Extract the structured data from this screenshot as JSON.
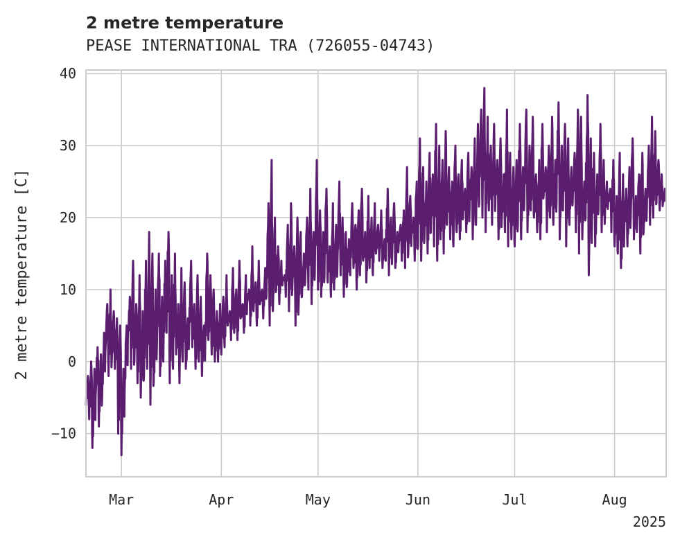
{
  "chart_data": {
    "type": "line",
    "title": "2 metre temperature",
    "subtitle": "PEASE INTERNATIONAL TRA (726055-04743)",
    "ylabel": "2 metre temperature [C]",
    "xlabel": "",
    "x_range": [
      "2025-02-18",
      "2025-08-17"
    ],
    "ylim": [
      -16,
      40.5
    ],
    "yticks": [
      -10,
      0,
      10,
      20,
      30,
      40
    ],
    "xticks": [
      {
        "date": "2025-03-01",
        "label": "Mar"
      },
      {
        "date": "2025-04-01",
        "label": "Apr"
      },
      {
        "date": "2025-05-01",
        "label": "May"
      },
      {
        "date": "2025-06-01",
        "label": "Jun"
      },
      {
        "date": "2025-07-01",
        "label": "Jul"
      },
      {
        "date": "2025-08-01",
        "label": "Aug"
      }
    ],
    "year_label": "2025",
    "grid": true,
    "line_color": "#5b1e6f",
    "series": [
      {
        "x": [
          "2025-02-18",
          "2025-02-19",
          "2025-02-20",
          "2025-02-21",
          "2025-02-22",
          "2025-02-23",
          "2025-02-24",
          "2025-02-25",
          "2025-02-26",
          "2025-02-27",
          "2025-02-28",
          "2025-03-01",
          "2025-03-02",
          "2025-03-03",
          "2025-03-04",
          "2025-03-05",
          "2025-03-06",
          "2025-03-07",
          "2025-03-08",
          "2025-03-09",
          "2025-03-10",
          "2025-03-11",
          "2025-03-12",
          "2025-03-13",
          "2025-03-14",
          "2025-03-15",
          "2025-03-16",
          "2025-03-17",
          "2025-03-18",
          "2025-03-19",
          "2025-03-20",
          "2025-03-21",
          "2025-03-22",
          "2025-03-23",
          "2025-03-24",
          "2025-03-25",
          "2025-03-26",
          "2025-03-27",
          "2025-03-28",
          "2025-03-29",
          "2025-03-30",
          "2025-03-31",
          "2025-04-01",
          "2025-04-02",
          "2025-04-03",
          "2025-04-04",
          "2025-04-05",
          "2025-04-06",
          "2025-04-07",
          "2025-04-08",
          "2025-04-09",
          "2025-04-10",
          "2025-04-11",
          "2025-04-12",
          "2025-04-13",
          "2025-04-14",
          "2025-04-15",
          "2025-04-16",
          "2025-04-17",
          "2025-04-18",
          "2025-04-19",
          "2025-04-20",
          "2025-04-21",
          "2025-04-22",
          "2025-04-23",
          "2025-04-24",
          "2025-04-25",
          "2025-04-26",
          "2025-04-27",
          "2025-04-28",
          "2025-04-29",
          "2025-04-30",
          "2025-05-01",
          "2025-05-02",
          "2025-05-03",
          "2025-05-04",
          "2025-05-05",
          "2025-05-06",
          "2025-05-07",
          "2025-05-08",
          "2025-05-09",
          "2025-05-10",
          "2025-05-11",
          "2025-05-12",
          "2025-05-13",
          "2025-05-14",
          "2025-05-15",
          "2025-05-16",
          "2025-05-17",
          "2025-05-18",
          "2025-05-19",
          "2025-05-20",
          "2025-05-21",
          "2025-05-22",
          "2025-05-23",
          "2025-05-24",
          "2025-05-25",
          "2025-05-26",
          "2025-05-27",
          "2025-05-28",
          "2025-05-29",
          "2025-05-30",
          "2025-05-31",
          "2025-06-01",
          "2025-06-02",
          "2025-06-03",
          "2025-06-04",
          "2025-06-05",
          "2025-06-06",
          "2025-06-07",
          "2025-06-08",
          "2025-06-09",
          "2025-06-10",
          "2025-06-11",
          "2025-06-12",
          "2025-06-13",
          "2025-06-14",
          "2025-06-15",
          "2025-06-16",
          "2025-06-17",
          "2025-06-18",
          "2025-06-19",
          "2025-06-20",
          "2025-06-21",
          "2025-06-22",
          "2025-06-23",
          "2025-06-24",
          "2025-06-25",
          "2025-06-26",
          "2025-06-27",
          "2025-06-28",
          "2025-06-29",
          "2025-06-30",
          "2025-07-01",
          "2025-07-02",
          "2025-07-03",
          "2025-07-04",
          "2025-07-05",
          "2025-07-06",
          "2025-07-07",
          "2025-07-08",
          "2025-07-09",
          "2025-07-10",
          "2025-07-11",
          "2025-07-12",
          "2025-07-13",
          "2025-07-14",
          "2025-07-15",
          "2025-07-16",
          "2025-07-17",
          "2025-07-18",
          "2025-07-19",
          "2025-07-20",
          "2025-07-21",
          "2025-07-22",
          "2025-07-23",
          "2025-07-24",
          "2025-07-25",
          "2025-07-26",
          "2025-07-27",
          "2025-07-28",
          "2025-07-29",
          "2025-07-30",
          "2025-07-31",
          "2025-08-01",
          "2025-08-02",
          "2025-08-03",
          "2025-08-04",
          "2025-08-05",
          "2025-08-06",
          "2025-08-07",
          "2025-08-08",
          "2025-08-09",
          "2025-08-10",
          "2025-08-11",
          "2025-08-12",
          "2025-08-13",
          "2025-08-14",
          "2025-08-15",
          "2025-08-16"
        ],
        "min": [
          -6,
          -8,
          -12,
          -5,
          -9,
          -5,
          1,
          -2,
          0,
          -1,
          -10,
          -13,
          -4,
          3,
          -1,
          0,
          -3,
          -5,
          -2,
          -1,
          -6,
          -3,
          2,
          -2,
          0,
          4,
          -3,
          -1,
          1,
          -3,
          0,
          -1,
          4,
          2,
          -1,
          0,
          -2,
          2,
          3,
          1,
          0,
          0,
          1,
          2,
          5,
          3,
          4,
          3,
          6,
          4,
          8,
          5,
          7,
          5,
          8,
          6,
          9,
          5,
          7,
          10,
          8,
          11,
          9,
          7,
          10,
          5,
          8,
          9,
          11,
          10,
          8,
          12,
          10,
          9,
          12,
          11,
          9,
          10,
          13,
          12,
          9,
          11,
          12,
          13,
          10,
          12,
          14,
          11,
          13,
          12,
          15,
          14,
          13,
          14,
          12,
          15,
          13,
          16,
          14,
          13,
          15,
          17,
          14,
          16,
          14,
          17,
          15,
          18,
          16,
          14,
          17,
          15,
          19,
          17,
          16,
          18,
          17,
          20,
          18,
          21,
          17,
          19,
          22,
          20,
          18,
          21,
          19,
          22,
          17,
          20,
          18,
          16,
          17,
          16,
          19,
          17,
          22,
          18,
          21,
          20,
          18,
          17,
          23,
          18,
          20,
          19,
          22,
          17,
          21,
          16,
          19,
          22,
          18,
          15,
          17,
          20,
          12,
          19,
          16,
          21,
          18,
          20,
          22,
          18,
          16,
          15,
          13,
          18,
          16,
          20,
          17,
          19,
          15,
          18,
          21,
          19,
          20,
          22,
          21,
          22
        ],
        "max": [
          -2,
          0,
          -1,
          2,
          1,
          4,
          8,
          10,
          7,
          6,
          5,
          -1,
          5,
          9,
          14,
          8,
          12,
          7,
          14,
          18,
          15,
          10,
          15,
          9,
          14,
          18,
          12,
          15,
          8,
          13,
          11,
          6,
          14,
          8,
          12,
          9,
          5,
          15,
          12,
          10,
          7,
          8,
          9,
          12,
          7,
          13,
          10,
          14,
          8,
          12,
          10,
          16,
          11,
          14,
          10,
          13,
          22,
          28,
          20,
          16,
          14,
          12,
          19,
          22,
          16,
          20,
          18,
          15,
          20,
          24,
          18,
          28,
          21,
          18,
          24,
          16,
          22,
          19,
          25,
          20,
          18,
          17,
          22,
          19,
          21,
          24,
          18,
          23,
          20,
          22,
          19,
          21,
          17,
          24,
          20,
          22,
          18,
          19,
          21,
          27,
          23,
          20,
          25,
          31,
          27,
          25,
          29,
          26,
          33,
          30,
          28,
          32,
          27,
          25,
          30,
          26,
          28,
          24,
          29,
          27,
          31,
          33,
          35,
          38,
          34,
          30,
          33,
          28,
          31,
          26,
          35,
          29,
          27,
          28,
          33,
          27,
          35,
          30,
          34,
          26,
          28,
          33,
          27,
          30,
          34,
          28,
          36,
          30,
          33,
          31,
          27,
          29,
          35,
          34,
          25,
          37,
          31,
          29,
          26,
          33,
          28,
          25,
          24,
          28,
          23,
          29,
          26,
          24,
          27,
          31,
          23,
          26,
          29,
          24,
          30,
          34,
          32,
          28,
          26,
          24
        ]
      }
    ]
  }
}
